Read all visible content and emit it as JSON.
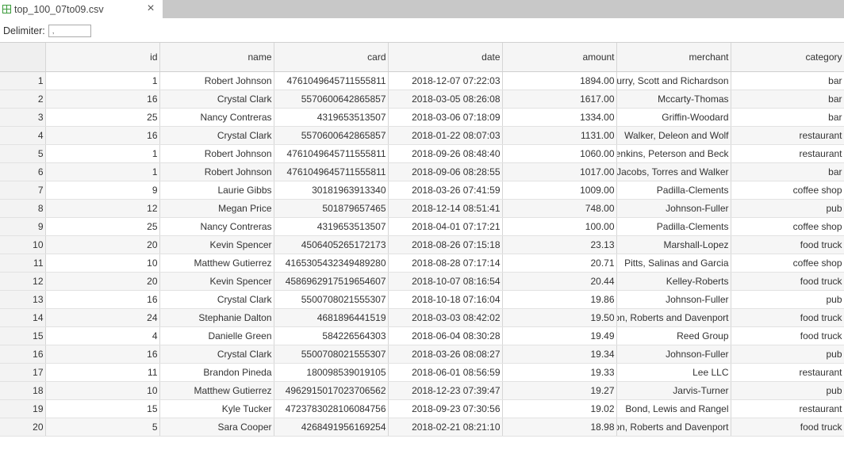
{
  "tab": {
    "title": "top_100_07to09.csv",
    "close_label": "×"
  },
  "delimiter": {
    "label": "Delimiter:",
    "value": ","
  },
  "grid": {
    "columns": [
      "",
      "id",
      "name",
      "card",
      "date",
      "amount",
      "merchant",
      "category"
    ],
    "rows": [
      [
        "1",
        "1",
        "Robert Johnson",
        "4761049645711555811",
        "2018-12-07 07:22:03",
        "1894.00",
        "Curry, Scott and Richardson",
        "bar"
      ],
      [
        "2",
        "16",
        "Crystal Clark",
        "5570600642865857",
        "2018-03-05 08:26:08",
        "1617.00",
        "Mccarty-Thomas",
        "bar"
      ],
      [
        "3",
        "25",
        "Nancy Contreras",
        "4319653513507",
        "2018-03-06 07:18:09",
        "1334.00",
        "Griffin-Woodard",
        "bar"
      ],
      [
        "4",
        "16",
        "Crystal Clark",
        "5570600642865857",
        "2018-01-22 08:07:03",
        "1131.00",
        "Walker, Deleon and Wolf",
        "restaurant"
      ],
      [
        "5",
        "1",
        "Robert Johnson",
        "4761049645711555811",
        "2018-09-26 08:48:40",
        "1060.00",
        "Jenkins, Peterson and Beck",
        "restaurant"
      ],
      [
        "6",
        "1",
        "Robert Johnson",
        "4761049645711555811",
        "2018-09-06 08:28:55",
        "1017.00",
        "Jacobs, Torres and Walker",
        "bar"
      ],
      [
        "7",
        "9",
        "Laurie Gibbs",
        "30181963913340",
        "2018-03-26 07:41:59",
        "1009.00",
        "Padilla-Clements",
        "coffee shop"
      ],
      [
        "8",
        "12",
        "Megan Price",
        "501879657465",
        "2018-12-14 08:51:41",
        "748.00",
        "Johnson-Fuller",
        "pub"
      ],
      [
        "9",
        "25",
        "Nancy Contreras",
        "4319653513507",
        "2018-04-01 07:17:21",
        "100.00",
        "Padilla-Clements",
        "coffee shop"
      ],
      [
        "10",
        "20",
        "Kevin Spencer",
        "4506405265172173",
        "2018-08-26 07:15:18",
        "23.13",
        "Marshall-Lopez",
        "food truck"
      ],
      [
        "11",
        "10",
        "Matthew Gutierrez",
        "4165305432349489280",
        "2018-08-28 07:17:14",
        "20.71",
        "Pitts, Salinas and Garcia",
        "coffee shop"
      ],
      [
        "12",
        "20",
        "Kevin Spencer",
        "4586962917519654607",
        "2018-10-07 08:16:54",
        "20.44",
        "Kelley-Roberts",
        "food truck"
      ],
      [
        "13",
        "16",
        "Crystal Clark",
        "5500708021555307",
        "2018-10-18 07:16:04",
        "19.86",
        "Johnson-Fuller",
        "pub"
      ],
      [
        "14",
        "24",
        "Stephanie Dalton",
        "4681896441519",
        "2018-03-03 08:42:02",
        "19.50",
        "Dixon, Roberts and Davenport",
        "food truck"
      ],
      [
        "15",
        "4",
        "Danielle Green",
        "584226564303",
        "2018-06-04 08:30:28",
        "19.49",
        "Reed Group",
        "food truck"
      ],
      [
        "16",
        "16",
        "Crystal Clark",
        "5500708021555307",
        "2018-03-26 08:08:27",
        "19.34",
        "Johnson-Fuller",
        "pub"
      ],
      [
        "17",
        "11",
        "Brandon Pineda",
        "180098539019105",
        "2018-06-01 08:56:59",
        "19.33",
        "Lee LLC",
        "restaurant"
      ],
      [
        "18",
        "10",
        "Matthew Gutierrez",
        "4962915017023706562",
        "2018-12-23 07:39:47",
        "19.27",
        "Jarvis-Turner",
        "pub"
      ],
      [
        "19",
        "15",
        "Kyle Tucker",
        "4723783028106084756",
        "2018-09-23 07:30:56",
        "19.02",
        "Bond, Lewis and Rangel",
        "restaurant"
      ],
      [
        "20",
        "5",
        "Sara Cooper",
        "4268491956169254",
        "2018-02-21 08:21:10",
        "18.98",
        "Dixon, Roberts and Davenport",
        "food truck"
      ]
    ]
  }
}
